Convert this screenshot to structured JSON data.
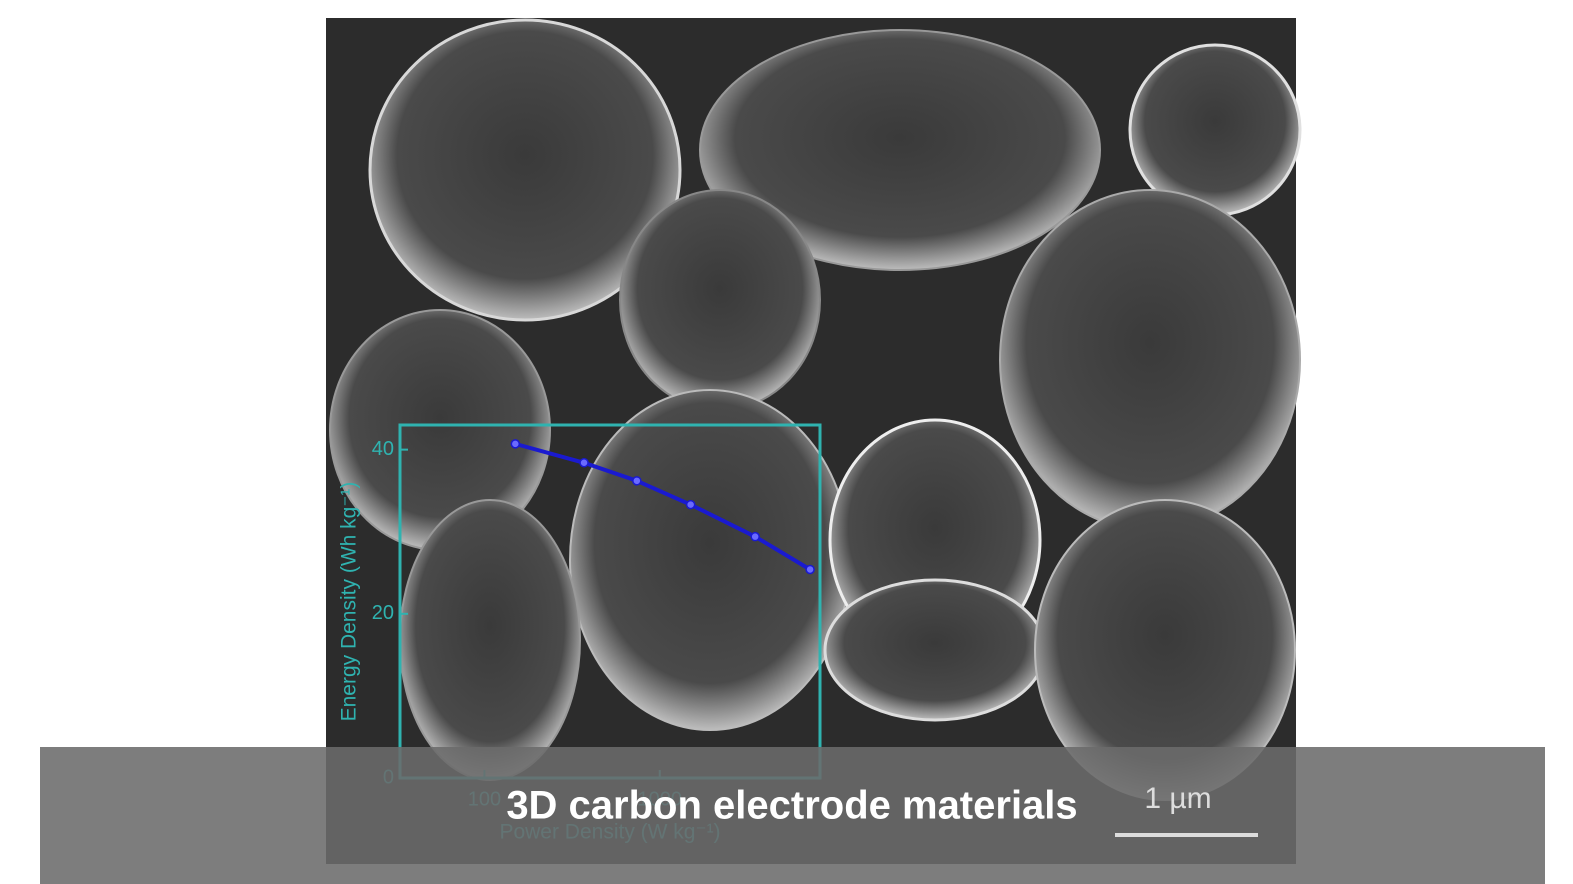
{
  "caption": "3D carbon electrode materials",
  "scale_bar": "1 µm",
  "chart_data": {
    "type": "line",
    "xlabel": "Power Density (W kg⁻¹)",
    "ylabel": "Energy Density (Wh kg⁻¹)",
    "x": [
      150,
      370,
      740,
      1500,
      3500,
      7200
    ],
    "series": [
      {
        "color": "#1a1ad0",
        "values": [
          40.7,
          38.4,
          36.2,
          33.3,
          29.4,
          25.4
        ]
      }
    ],
    "xscale": "log",
    "xlim": [
      33,
      8200
    ],
    "xticks": [
      100,
      1000
    ],
    "ylim": [
      0,
      43
    ],
    "yticks": [
      0,
      20,
      40
    ],
    "axis_color": "#2fb3b0"
  }
}
